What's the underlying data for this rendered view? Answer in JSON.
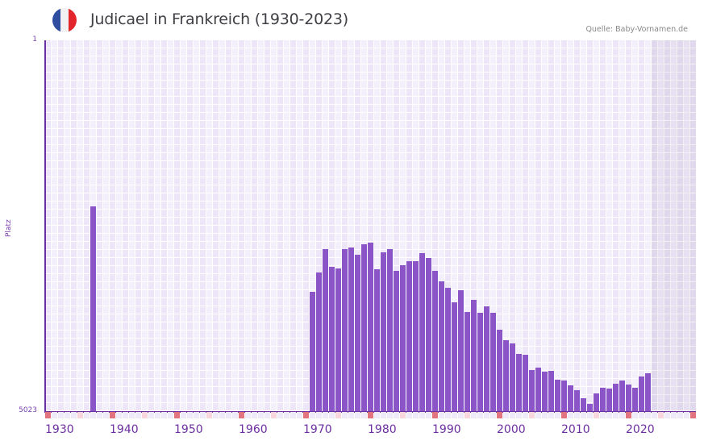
{
  "header": {
    "flag": "france-flag",
    "flag_colors": [
      "#2f4ea0",
      "#f2f2f2",
      "#e2262b"
    ],
    "title": "Judicael in Frankreich (1930-2023)",
    "source": "Quelle: Baby-Vornamen.de"
  },
  "axis": {
    "ylabel": "Platz",
    "ytop": "1",
    "ybottom": "5023",
    "xlabels": [
      "1930",
      "1940",
      "1950",
      "1960",
      "1970",
      "1980",
      "1990",
      "2000",
      "2010",
      "2020"
    ]
  },
  "colors": {
    "bar": "#8b55c8",
    "axis": "#6b2fa0",
    "tick_decade": "#e07580",
    "tick_half": "#f7d6de",
    "tick_other": "#efeaf8"
  },
  "chart_data": {
    "type": "bar",
    "title": "Judicael in Frankreich (1930-2023)",
    "xlabel": "",
    "ylabel": "Platz",
    "y_inverted": true,
    "ylim": [
      5023,
      1
    ],
    "x_range": [
      1930,
      2029
    ],
    "shaded_future_from": 2024,
    "grid": true,
    "categories": [
      1937,
      1971,
      1972,
      1973,
      1974,
      1975,
      1976,
      1977,
      1978,
      1979,
      1980,
      1981,
      1982,
      1983,
      1984,
      1985,
      1986,
      1987,
      1988,
      1989,
      1990,
      1991,
      1992,
      1993,
      1994,
      1995,
      1996,
      1997,
      1998,
      1999,
      2000,
      2001,
      2002,
      2003,
      2004,
      2005,
      2006,
      2007,
      2008,
      2009,
      2010,
      2011,
      2012,
      2013,
      2014,
      2015,
      2016,
      2017,
      2018,
      2019,
      2020,
      2021,
      2022,
      2023
    ],
    "values": [
      2250,
      3406,
      3144,
      2828,
      3068,
      3090,
      2828,
      2806,
      2904,
      2763,
      2741,
      3101,
      2872,
      2828,
      3123,
      3047,
      2992,
      2992,
      2883,
      2948,
      3123,
      3265,
      3353,
      3549,
      3385,
      3680,
      3516,
      3691,
      3604,
      3691,
      3920,
      4062,
      4106,
      4248,
      4259,
      4466,
      4433,
      4488,
      4477,
      4597,
      4608,
      4674,
      4739,
      4848,
      4925,
      4783,
      4706,
      4717,
      4652,
      4608,
      4663,
      4706,
      4553,
      4510
    ]
  }
}
